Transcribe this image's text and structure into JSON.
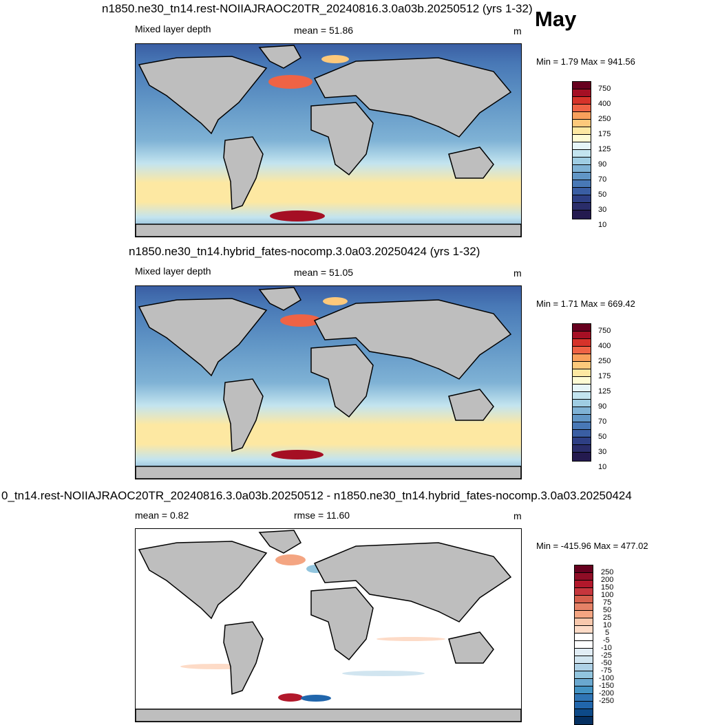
{
  "month": "May",
  "panels": [
    {
      "title": "n1850.ne30_tn14.rest-NOIIAJRAOC20TR_20240816.3.0a03b.20250512 (yrs 1-32)",
      "left_label": "Mixed layer depth",
      "center_label": "mean =  51.86",
      "units": "m",
      "minmax": "Min =   1.79 Max = 941.56",
      "colorbar_ticks": [
        "750",
        "400",
        "250",
        "175",
        "125",
        "90",
        "70",
        "50",
        "30",
        "10"
      ],
      "colorbar_colors": [
        "#67001f",
        "#a50f24",
        "#d6332a",
        "#ef6345",
        "#f9a05b",
        "#fdc97b",
        "#fde8a2",
        "#fdfbd4",
        "#e6f5f8",
        "#c3e4ef",
        "#9fcde3",
        "#7fb2d5",
        "#6196c6",
        "#4878b6",
        "#3a5ea3",
        "#2e3f84"
      ]
    },
    {
      "title": "n1850.ne30_tn14.hybrid_fates-nocomp.3.0a03.20250424 (yrs 1-32)",
      "left_label": "Mixed layer depth",
      "center_label": "mean =  51.05",
      "units": "m",
      "minmax": "Min =   1.71 Max = 669.42",
      "colorbar_ticks": [
        "750",
        "400",
        "250",
        "175",
        "125",
        "90",
        "70",
        "50",
        "30",
        "10"
      ],
      "colorbar_colors": [
        "#67001f",
        "#a50f24",
        "#d6332a",
        "#ef6345",
        "#f9a05b",
        "#fdc97b",
        "#fde8a2",
        "#fdfbd4",
        "#e6f5f8",
        "#c3e4ef",
        "#9fcde3",
        "#7fb2d5",
        "#6196c6",
        "#4878b6",
        "#3a5ea3",
        "#2e3f84"
      ]
    },
    {
      "title": "0_tn14.rest-NOIIAJRAOC20TR_20240816.3.0a03b.20250512 - n1850.ne30_tn14.hybrid_fates-nocomp.3.0a03.20250424",
      "left_label": "mean =   0.82",
      "center_label": "rmse =  11.60",
      "units": "m",
      "minmax": "Min = -415.96 Max = 477.02",
      "colorbar_ticks": [
        "250",
        "200",
        "150",
        "100",
        "75",
        "50",
        "25",
        "10",
        "5",
        "-5",
        "-10",
        "-25",
        "-50",
        "-75",
        "-100",
        "-150",
        "-200",
        "-250"
      ],
      "colorbar_colors": [
        "#67001f",
        "#8f0d26",
        "#b2182b",
        "#c6363d",
        "#d6604d",
        "#e58267",
        "#f4a582",
        "#f8c8ad",
        "#fddbc7",
        "#ffffff",
        "#ffffff",
        "#e1edf5",
        "#d1e5f0",
        "#aed1e6",
        "#92c5de",
        "#6aa8cf",
        "#4393c3",
        "#2f75b5",
        "#2166ac",
        "#0d4a88",
        "#053061"
      ]
    }
  ],
  "colors": {
    "land": "#bebebe",
    "coast": "#000000"
  }
}
